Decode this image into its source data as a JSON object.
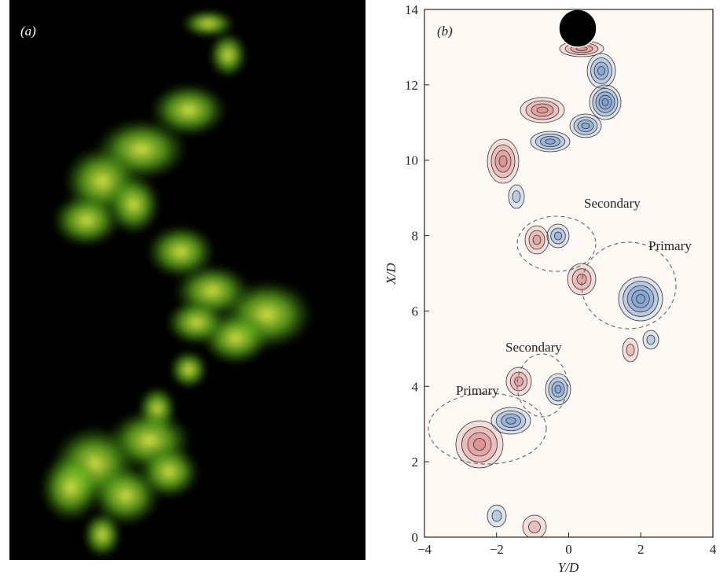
{
  "panels": [
    {
      "label": "(a)"
    },
    {
      "label": "(b)",
      "xlabel": "Y/D",
      "ylabel": "X/D",
      "xlim": [
        -4,
        4
      ],
      "ylim": [
        0,
        14
      ],
      "xticks": [
        {
          "value": -4,
          "label": "−4"
        },
        {
          "value": -2,
          "label": "−2"
        },
        0,
        2,
        4
      ],
      "yticks": [
        0,
        2,
        4,
        6,
        8,
        10,
        12,
        14
      ],
      "annotations": [
        "Secondary",
        "Primary",
        "Secondary",
        "Primary"
      ]
    }
  ]
}
